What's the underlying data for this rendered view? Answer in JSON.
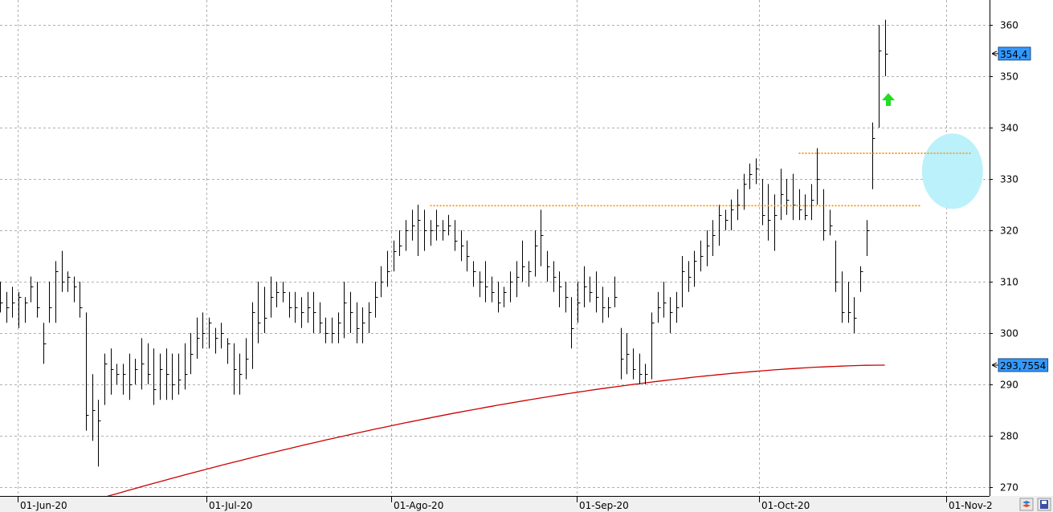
{
  "chart_data": {
    "type": "ohlc",
    "x_tick_labels": [
      "01-Jun-20",
      "01-Jul-20",
      "01-Ago-20",
      "01-Sep-20",
      "01-Oct-20",
      "01-Nov-2"
    ],
    "y_ticks": [
      270,
      280,
      290,
      300,
      310,
      320,
      330,
      340,
      350,
      360
    ],
    "ylim": [
      267.5,
      364.5
    ],
    "grid": true,
    "last_price_label": "354,4",
    "ma_label": "293,7554",
    "bars": [
      {
        "h": 310,
        "l": 304,
        "c": 306
      },
      {
        "h": 308,
        "l": 302,
        "c": 305
      },
      {
        "h": 309,
        "l": 303,
        "c": 306
      },
      {
        "h": 308,
        "l": 301,
        "c": 307
      },
      {
        "h": 307,
        "l": 302,
        "c": 306
      },
      {
        "h": 311,
        "l": 306,
        "c": 309
      },
      {
        "h": 310,
        "l": 303,
        "c": 305
      },
      {
        "h": 302,
        "l": 294,
        "c": 298
      },
      {
        "h": 310,
        "l": 302,
        "c": 305
      },
      {
        "h": 314,
        "l": 302,
        "c": 312
      },
      {
        "h": 316,
        "l": 308,
        "c": 310
      },
      {
        "h": 312,
        "l": 308,
        "c": 311
      },
      {
        "h": 311,
        "l": 306,
        "c": 309
      },
      {
        "h": 310,
        "l": 303,
        "c": 305
      },
      {
        "h": 304,
        "l": 281,
        "c": 284
      },
      {
        "h": 292,
        "l": 279,
        "c": 285
      },
      {
        "h": 287,
        "l": 274,
        "c": 283
      },
      {
        "h": 296,
        "l": 286,
        "c": 294
      },
      {
        "h": 297,
        "l": 288,
        "c": 293
      },
      {
        "h": 294,
        "l": 290,
        "c": 292
      },
      {
        "h": 294,
        "l": 288,
        "c": 292
      },
      {
        "h": 296,
        "l": 287,
        "c": 290
      },
      {
        "h": 295,
        "l": 290,
        "c": 293
      },
      {
        "h": 299,
        "l": 289,
        "c": 294
      },
      {
        "h": 298,
        "l": 290,
        "c": 292
      },
      {
        "h": 297,
        "l": 286,
        "c": 289
      },
      {
        "h": 296,
        "l": 287,
        "c": 293
      },
      {
        "h": 297,
        "l": 287,
        "c": 292
      },
      {
        "h": 296,
        "l": 287,
        "c": 290
      },
      {
        "h": 296,
        "l": 288,
        "c": 291
      },
      {
        "h": 298,
        "l": 289,
        "c": 292
      },
      {
        "h": 300,
        "l": 292,
        "c": 296
      },
      {
        "h": 303,
        "l": 295,
        "c": 299
      },
      {
        "h": 304,
        "l": 297,
        "c": 300
      },
      {
        "h": 303,
        "l": 297,
        "c": 302
      },
      {
        "h": 301,
        "l": 296,
        "c": 299
      },
      {
        "h": 302,
        "l": 297,
        "c": 300
      },
      {
        "h": 299,
        "l": 294,
        "c": 298
      },
      {
        "h": 298,
        "l": 288,
        "c": 293
      },
      {
        "h": 296,
        "l": 288,
        "c": 292
      },
      {
        "h": 299,
        "l": 291,
        "c": 295
      },
      {
        "h": 306,
        "l": 293,
        "c": 304
      },
      {
        "h": 310,
        "l": 298,
        "c": 302
      },
      {
        "h": 309,
        "l": 300,
        "c": 303
      },
      {
        "h": 311,
        "l": 303,
        "c": 307
      },
      {
        "h": 310,
        "l": 305,
        "c": 308
      },
      {
        "h": 310,
        "l": 306,
        "c": 308
      },
      {
        "h": 308,
        "l": 303,
        "c": 305
      },
      {
        "h": 308,
        "l": 302,
        "c": 305
      },
      {
        "h": 307,
        "l": 301,
        "c": 304
      },
      {
        "h": 308,
        "l": 302,
        "c": 305
      },
      {
        "h": 308,
        "l": 300,
        "c": 304
      },
      {
        "h": 306,
        "l": 300,
        "c": 302
      },
      {
        "h": 303,
        "l": 298,
        "c": 300
      },
      {
        "h": 303,
        "l": 298,
        "c": 300
      },
      {
        "h": 304,
        "l": 298,
        "c": 302
      },
      {
        "h": 310,
        "l": 299,
        "c": 306
      },
      {
        "h": 308,
        "l": 300,
        "c": 304
      },
      {
        "h": 306,
        "l": 298,
        "c": 301
      },
      {
        "h": 305,
        "l": 298,
        "c": 302
      },
      {
        "h": 306,
        "l": 300,
        "c": 304
      },
      {
        "h": 310,
        "l": 303,
        "c": 307
      },
      {
        "h": 313,
        "l": 307,
        "c": 310
      },
      {
        "h": 316,
        "l": 309,
        "c": 312
      },
      {
        "h": 318,
        "l": 312,
        "c": 316
      },
      {
        "h": 320,
        "l": 315,
        "c": 317
      },
      {
        "h": 322,
        "l": 316,
        "c": 320
      },
      {
        "h": 324,
        "l": 318,
        "c": 321
      },
      {
        "h": 325,
        "l": 315,
        "c": 322
      },
      {
        "h": 324,
        "l": 316,
        "c": 320
      },
      {
        "h": 322,
        "l": 317,
        "c": 320
      },
      {
        "h": 324,
        "l": 318,
        "c": 321
      },
      {
        "h": 322,
        "l": 318,
        "c": 320
      },
      {
        "h": 323,
        "l": 319,
        "c": 321
      },
      {
        "h": 322,
        "l": 316,
        "c": 318
      },
      {
        "h": 320,
        "l": 314,
        "c": 317
      },
      {
        "h": 318,
        "l": 312,
        "c": 315
      },
      {
        "h": 314,
        "l": 309,
        "c": 312
      },
      {
        "h": 312,
        "l": 307,
        "c": 310
      },
      {
        "h": 314,
        "l": 306,
        "c": 309
      },
      {
        "h": 311,
        "l": 306,
        "c": 308
      },
      {
        "h": 310,
        "l": 304,
        "c": 306
      },
      {
        "h": 309,
        "l": 305,
        "c": 308
      },
      {
        "h": 312,
        "l": 306,
        "c": 310
      },
      {
        "h": 314,
        "l": 307,
        "c": 311
      },
      {
        "h": 318,
        "l": 310,
        "c": 313
      },
      {
        "h": 314,
        "l": 309,
        "c": 312
      },
      {
        "h": 320,
        "l": 311,
        "c": 317
      },
      {
        "h": 324,
        "l": 313,
        "c": 319
      },
      {
        "h": 316,
        "l": 310,
        "c": 313
      },
      {
        "h": 314,
        "l": 308,
        "c": 311
      },
      {
        "h": 312,
        "l": 305,
        "c": 309
      },
      {
        "h": 310,
        "l": 304,
        "c": 307
      },
      {
        "h": 307,
        "l": 297,
        "c": 301
      },
      {
        "h": 310,
        "l": 302,
        "c": 306
      },
      {
        "h": 313,
        "l": 305,
        "c": 309
      },
      {
        "h": 311,
        "l": 306,
        "c": 308
      },
      {
        "h": 312,
        "l": 304,
        "c": 307
      },
      {
        "h": 309,
        "l": 302,
        "c": 305
      },
      {
        "h": 307,
        "l": 303,
        "c": 305
      },
      {
        "h": 311,
        "l": 305,
        "c": 307
      },
      {
        "h": 301,
        "l": 291,
        "c": 295
      },
      {
        "h": 300,
        "l": 292,
        "c": 296
      },
      {
        "h": 297,
        "l": 291,
        "c": 293
      },
      {
        "h": 296,
        "l": 290,
        "c": 292
      },
      {
        "h": 294,
        "l": 290,
        "c": 292
      },
      {
        "h": 304,
        "l": 291,
        "c": 302
      },
      {
        "h": 308,
        "l": 302,
        "c": 305
      },
      {
        "h": 310,
        "l": 303,
        "c": 306
      },
      {
        "h": 307,
        "l": 300,
        "c": 304
      },
      {
        "h": 308,
        "l": 302,
        "c": 305
      },
      {
        "h": 315,
        "l": 305,
        "c": 312
      },
      {
        "h": 314,
        "l": 308,
        "c": 311
      },
      {
        "h": 316,
        "l": 309,
        "c": 314
      },
      {
        "h": 318,
        "l": 312,
        "c": 315
      },
      {
        "h": 320,
        "l": 313,
        "c": 317
      },
      {
        "h": 322,
        "l": 315,
        "c": 319
      },
      {
        "h": 325,
        "l": 317,
        "c": 323
      },
      {
        "h": 324,
        "l": 320,
        "c": 322
      },
      {
        "h": 326,
        "l": 320,
        "c": 324
      },
      {
        "h": 328,
        "l": 322,
        "c": 325
      },
      {
        "h": 331,
        "l": 324,
        "c": 329
      },
      {
        "h": 333,
        "l": 328,
        "c": 331
      },
      {
        "h": 334,
        "l": 329,
        "c": 332
      },
      {
        "h": 330,
        "l": 321,
        "c": 323
      },
      {
        "h": 329,
        "l": 318,
        "c": 322
      },
      {
        "h": 327,
        "l": 316,
        "c": 323
      },
      {
        "h": 332,
        "l": 322,
        "c": 327
      },
      {
        "h": 330,
        "l": 323,
        "c": 326
      },
      {
        "h": 331,
        "l": 322,
        "c": 325
      },
      {
        "h": 328,
        "l": 322,
        "c": 324
      },
      {
        "h": 327,
        "l": 322,
        "c": 323
      },
      {
        "h": 329,
        "l": 322,
        "c": 326
      },
      {
        "h": 336,
        "l": 325,
        "c": 330
      },
      {
        "h": 328,
        "l": 318,
        "c": 320
      },
      {
        "h": 324,
        "l": 319,
        "c": 321
      },
      {
        "h": 318,
        "l": 308,
        "c": 310
      },
      {
        "h": 312,
        "l": 302,
        "c": 304
      },
      {
        "h": 310,
        "l": 302,
        "c": 304
      },
      {
        "h": 307,
        "l": 300,
        "c": 303
      },
      {
        "h": 313,
        "l": 308,
        "c": 312
      },
      {
        "h": 322,
        "l": 315,
        "c": 320
      },
      {
        "h": 341,
        "l": 328,
        "c": 338
      },
      {
        "h": 360,
        "l": 340,
        "c": 355
      },
      {
        "h": 361,
        "l": 350,
        "c": 354.4
      }
    ],
    "moving_average": {
      "start": 267,
      "end": 293.7554
    },
    "resistance_lines": [
      {
        "y": 324.8,
        "from_bar": 70,
        "to_bar": 150,
        "color": "#ff8c00"
      },
      {
        "y": 335.0,
        "from_bar": 130,
        "to_bar": 158,
        "color": "#ff8c00"
      }
    ],
    "highlight_ellipse": {
      "x_bar": 152,
      "y": 334,
      "color": "#b7f0fb"
    },
    "up_arrow": {
      "x_bar": 141,
      "y": 345,
      "color": "#22dd22"
    },
    "colors": {
      "bars": "#000000",
      "ma_line": "#cc0000",
      "grid": "#b0b0b0",
      "badge": "#3399ff",
      "axis_bg": "#f0f0f0"
    }
  },
  "toolbar": {
    "left_icon": "layers-icon",
    "right_icon": "save-icon"
  }
}
